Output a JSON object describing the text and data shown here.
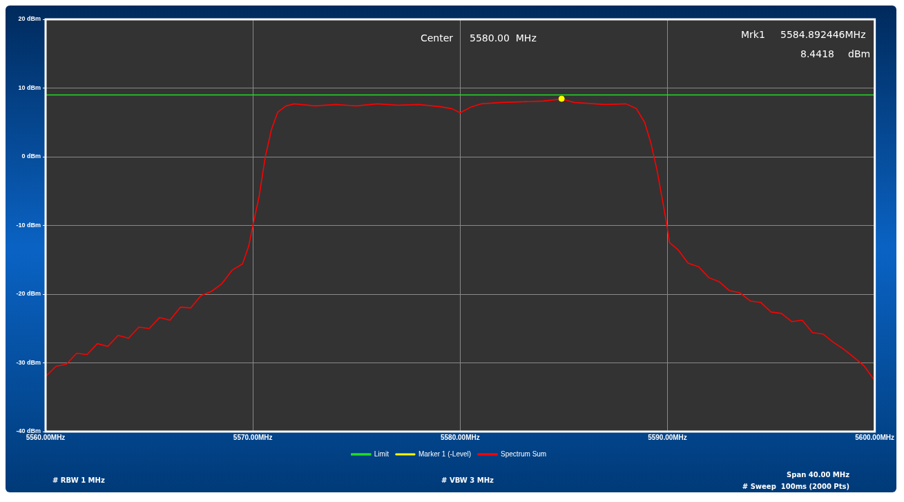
{
  "chart_data": {
    "type": "line",
    "xlim": [
      5560,
      5600
    ],
    "xticks": [
      {
        "value": 5560,
        "label": "5560.00MHz"
      },
      {
        "value": 5570,
        "label": "5570.00MHz"
      },
      {
        "value": 5580,
        "label": "5580.00MHz"
      },
      {
        "value": 5590,
        "label": "5590.00MHz"
      },
      {
        "value": 5600,
        "label": "5600.00MHz"
      }
    ],
    "ylim": [
      -40,
      20
    ],
    "yticks": [
      {
        "value": -40,
        "label": "-40 dBm"
      },
      {
        "value": -30,
        "label": "-30 dBm"
      },
      {
        "value": -20,
        "label": "-20 dBm"
      },
      {
        "value": -10,
        "label": "-10 dBm"
      },
      {
        "value": 0,
        "label": "0 dBm"
      },
      {
        "value": 10,
        "label": "10 dBm"
      },
      {
        "value": 20,
        "label": "20 dBm"
      }
    ],
    "grid": true,
    "legend": "bottom",
    "line_style": "solid",
    "series": [
      {
        "name": "Limit",
        "color": "#22dd22",
        "x": [
          5560,
          5600
        ],
        "values": [
          9,
          9
        ]
      },
      {
        "name": "Marker 1 (-Level)",
        "type": "scatter",
        "marker": "circle",
        "color": "#ffff00",
        "x": [
          5584.892446
        ],
        "values": [
          8.4418
        ]
      },
      {
        "name": "Spectrum Sum",
        "color": "#ff0000",
        "x": [
          5560,
          5560.5,
          5561,
          5561.5,
          5562,
          5562.5,
          5563,
          5563.5,
          5564,
          5564.5,
          5565,
          5565.5,
          5566,
          5566.5,
          5567,
          5567.5,
          5568,
          5568.5,
          5569,
          5569.5,
          5569.8,
          5570,
          5570.3,
          5570.6,
          5570.9,
          5571.2,
          5571.6,
          5572,
          5573,
          5574,
          5575,
          5576,
          5577,
          5578,
          5579,
          5579.6,
          5580,
          5580.5,
          5581,
          5582,
          5583,
          5584,
          5584.9,
          5585.5,
          5586,
          5587,
          5588,
          5588.5,
          5588.9,
          5589.2,
          5589.5,
          5589.8,
          5590,
          5590.1,
          5590.5,
          5591,
          5591.5,
          5592,
          5592.5,
          5593,
          5593.5,
          5594,
          5594.5,
          5595,
          5595.5,
          5596,
          5596.5,
          5597,
          5597.5,
          5598,
          5598.5,
          5599,
          5599.5,
          5600
        ],
        "values": [
          -32,
          -30.5,
          -30.2,
          -28.6,
          -28.8,
          -27.2,
          -27.6,
          -26,
          -26.4,
          -24.8,
          -25,
          -23.4,
          -23.8,
          -21.9,
          -22,
          -20.2,
          -19.6,
          -18.5,
          -16.5,
          -15.6,
          -13,
          -10,
          -5.8,
          0,
          4,
          6.5,
          7.4,
          7.7,
          7.4,
          7.6,
          7.4,
          7.7,
          7.5,
          7.6,
          7.3,
          7,
          6.4,
          7.2,
          7.7,
          7.9,
          8,
          8.1,
          8.4,
          7.9,
          7.8,
          7.6,
          7.7,
          7,
          5,
          2,
          -2,
          -7,
          -10.5,
          -12.5,
          -13.5,
          -15.5,
          -16,
          -17.6,
          -18.2,
          -19.5,
          -19.8,
          -21,
          -21.2,
          -22.6,
          -22.8,
          -24,
          -23.8,
          -25.6,
          -25.8,
          -27,
          -28,
          -29.2,
          -30.5,
          -32.6
        ]
      }
    ],
    "annotations": [
      "Center",
      "5580.00  MHz",
      "Mrk1",
      "5584.892446MHz",
      "8.4418",
      "dBm",
      "# RBW 1 MHz",
      "# VBW 3 MHz",
      "Span 40.00 MHz",
      "# Sweep  100ms (2000 Pts)"
    ]
  }
}
